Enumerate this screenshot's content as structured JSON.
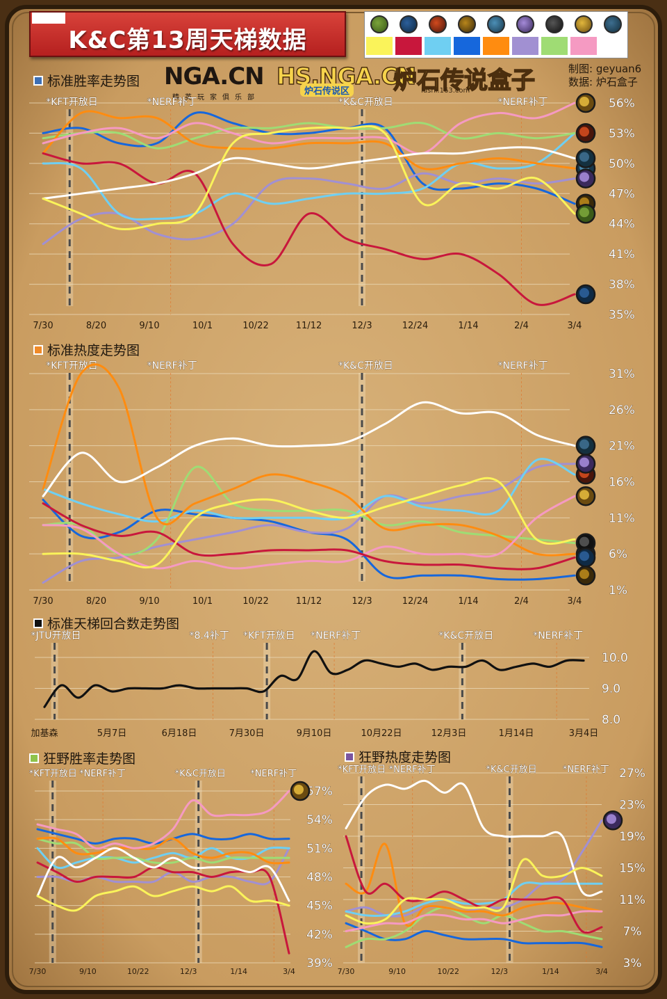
{
  "title": "K&C第13周天梯数据",
  "credits": {
    "maker_label": "制图:",
    "maker": "geyuan6",
    "source_label": "数据:",
    "source": "炉石盒子"
  },
  "logos": {
    "nga": "NGA.CN",
    "nga_sub": "精英玩家俱乐部",
    "hs_nga": "HS.NGA.CN",
    "hs_nga_sub": "炉石传说区",
    "box": "炉石传说盒子",
    "box_sub": "lushi.163.com"
  },
  "legend": [
    {
      "hero": "druid",
      "color": "#faf35a"
    },
    {
      "hero": "warrior",
      "color": "#c8173c"
    },
    {
      "hero": "mage",
      "color": "#6fcff2"
    },
    {
      "hero": "shaman",
      "color": "#1667dc"
    },
    {
      "hero": "hunter",
      "color": "#ff8c10"
    },
    {
      "hero": "warlock",
      "color": "#a190d2"
    },
    {
      "hero": "rogue",
      "color": "#9fdc74"
    },
    {
      "hero": "paladin",
      "color": "#f59ac2"
    },
    {
      "hero": "priest",
      "color": "#ffffff"
    }
  ],
  "chart_data": [
    {
      "id": "std_wr",
      "type": "line",
      "title": "标准胜率走势图",
      "title_color": "#3d6fb4",
      "x_labels": [
        "7/30",
        "8/20",
        "9/10",
        "10/1",
        "10/22",
        "11/12",
        "12/3",
        "12/24",
        "1/14",
        "2/4",
        "3/4"
      ],
      "y_ticks": [
        "35%",
        "38%",
        "41%",
        "44%",
        "47%",
        "50%",
        "53%",
        "56%"
      ],
      "ylim": [
        35,
        57
      ],
      "events": [
        {
          "label": "*KFT开放日",
          "x": 0.5
        },
        {
          "label": "*NERF补丁",
          "x": 2.4
        },
        {
          "label": "*K&C开放日",
          "x": 6.0
        },
        {
          "label": "*NERF补丁",
          "x": 9.0
        }
      ],
      "series": [
        {
          "name": "druid",
          "values": [
            46.5,
            45,
            43.5,
            44,
            45,
            52,
            53,
            53.5,
            53.5,
            53,
            46,
            48,
            47.5,
            48.5,
            45
          ]
        },
        {
          "name": "warrior",
          "values": [
            51,
            50,
            50,
            48,
            49,
            42,
            40,
            45,
            42.5,
            41.5,
            40.5,
            41,
            39,
            36,
            37
          ]
        },
        {
          "name": "mage",
          "values": [
            50,
            49.5,
            45,
            44.5,
            45,
            47,
            46,
            46.5,
            47,
            47,
            47.5,
            50,
            49.5,
            50,
            53
          ]
        },
        {
          "name": "shaman",
          "values": [
            53,
            53.5,
            52,
            52,
            55,
            54,
            53,
            53,
            53.5,
            53.5,
            48,
            47.5,
            48,
            47.5,
            46
          ]
        },
        {
          "name": "hunter",
          "values": [
            51,
            55,
            54.5,
            54.5,
            52,
            51.5,
            51.5,
            52,
            52,
            52,
            49.5,
            50,
            50.5,
            50,
            49.5
          ]
        },
        {
          "name": "warlock",
          "values": [
            42,
            44.5,
            45,
            43,
            42.5,
            44,
            48,
            48.5,
            48,
            47.5,
            49,
            48,
            48.5,
            48,
            48.5
          ]
        },
        {
          "name": "rogue",
          "values": [
            52.5,
            53,
            53,
            51.5,
            52.5,
            53.5,
            53.5,
            54,
            53.5,
            53.5,
            54,
            52.5,
            53,
            52.5,
            53
          ]
        },
        {
          "name": "paladin",
          "values": [
            52,
            53,
            53.5,
            52.5,
            54,
            53,
            52,
            52.5,
            52.5,
            52.5,
            51,
            54,
            55,
            54.5,
            56
          ]
        },
        {
          "name": "priest",
          "values": [
            46.5,
            47,
            47.5,
            48,
            49,
            50.5,
            50,
            49.5,
            50,
            50.5,
            51,
            51,
            51.5,
            51.5,
            50.5
          ]
        }
      ],
      "end_icons": [
        "paladin",
        "hunter",
        "shaman",
        "rogue",
        "mage",
        "priest",
        "warlock",
        "druid",
        "warrior"
      ]
    },
    {
      "id": "std_pop",
      "type": "line",
      "title": "标准热度走势图",
      "title_color": "#f08a28",
      "x_labels": [
        "7/30",
        "8/20",
        "9/10",
        "10/1",
        "10/22",
        "11/12",
        "12/3",
        "12/24",
        "1/14",
        "2/4",
        "3/4"
      ],
      "y_ticks": [
        "1%",
        "6%",
        "11%",
        "16%",
        "21%",
        "26%",
        "31%"
      ],
      "ylim": [
        1,
        32
      ],
      "events": [
        {
          "label": "*KFT开放日",
          "x": 0.5
        },
        {
          "label": "*NERF补丁",
          "x": 2.4
        },
        {
          "label": "*K&C开放日",
          "x": 6.0
        },
        {
          "label": "*NERF补丁",
          "x": 9.0
        }
      ],
      "series": [
        {
          "name": "druid",
          "values": [
            6,
            6,
            5,
            4.5,
            11,
            13,
            13.5,
            12,
            11,
            12.5,
            14,
            15.5,
            16,
            8,
            8
          ]
        },
        {
          "name": "warrior",
          "values": [
            13,
            10,
            8.5,
            9,
            6,
            6,
            6.5,
            6.5,
            6.5,
            5,
            4.5,
            4.5,
            4,
            4,
            5.5
          ]
        },
        {
          "name": "mage",
          "values": [
            15,
            13,
            11.5,
            10.5,
            12,
            11,
            11,
            11,
            11,
            14,
            12.5,
            12,
            12,
            19,
            17
          ]
        },
        {
          "name": "shaman",
          "values": [
            13.5,
            8.5,
            9,
            12,
            11.5,
            11,
            10.5,
            9,
            8,
            3,
            3,
            3,
            2.5,
            2.5,
            3
          ]
        },
        {
          "name": "hunter",
          "values": [
            15,
            31,
            29,
            11,
            13,
            15,
            17,
            16,
            14,
            9.5,
            10,
            10,
            8.5,
            6,
            6
          ]
        },
        {
          "name": "warlock",
          "values": [
            2,
            5,
            5.5,
            7,
            8,
            9,
            10,
            9,
            9.5,
            14,
            13,
            14,
            15,
            18,
            18.5
          ]
        },
        {
          "name": "rogue",
          "values": [
            10,
            10,
            6,
            8,
            18,
            13,
            12,
            12,
            12,
            10,
            10.5,
            9,
            8.5,
            8,
            7.5
          ]
        },
        {
          "name": "paladin",
          "values": [
            10,
            9.5,
            6,
            4,
            5,
            4,
            4.5,
            5,
            5,
            7,
            6,
            6,
            6,
            11,
            14
          ]
        },
        {
          "name": "priest",
          "values": [
            14,
            20,
            16,
            18,
            21,
            22,
            21,
            21,
            21.5,
            24,
            27,
            25.5,
            25.5,
            22.5,
            21
          ]
        }
      ],
      "end_icons": [
        "mage",
        "hunter",
        "warlock",
        "paladin",
        "priest",
        "rogue",
        "warrior",
        "shaman"
      ]
    },
    {
      "id": "std_turns",
      "type": "line",
      "title": "标准天梯回合数走势图",
      "title_color": "#111111",
      "x_labels": [
        "加基森",
        "5月7日",
        "6月18日",
        "7月30日",
        "9月10日",
        "10月22日",
        "12月3日",
        "1月14日",
        "3月4日"
      ],
      "y_ticks": [
        "8.0",
        "9.0",
        "10.0"
      ],
      "ylim": [
        8,
        10.5
      ],
      "events": [
        {
          "label": "*JTU开放日",
          "x": 0.15
        },
        {
          "label": "*8.4补丁",
          "x": 2.5
        },
        {
          "label": "*KFT开放日",
          "x": 3.3
        },
        {
          "label": "*NERF补丁",
          "x": 4.3
        },
        {
          "label": "*K&C开放日",
          "x": 6.2
        },
        {
          "label": "*NERF补丁",
          "x": 7.6
        }
      ],
      "series": [
        {
          "name": "turns",
          "values": [
            8.4,
            9.1,
            8.7,
            9.1,
            8.9,
            9.0,
            9.0,
            9.0,
            9.1,
            9.0,
            9.0,
            9.0,
            9.0,
            8.9,
            9.4,
            9.3,
            10.2,
            9.5,
            9.6,
            9.9,
            9.8,
            9.7,
            9.8,
            9.6,
            9.7,
            9.7,
            9.9,
            9.6,
            9.7,
            9.8,
            9.7,
            9.9,
            9.9
          ]
        }
      ]
    },
    {
      "id": "wild_wr",
      "type": "line",
      "title": "狂野胜率走势图",
      "title_color": "#8fc34a",
      "x_labels": [
        "7/30",
        "9/10",
        "10/22",
        "12/3",
        "1/14",
        "3/4"
      ],
      "y_ticks": [
        "39%",
        "42%",
        "45%",
        "48%",
        "51%",
        "54%",
        "57%"
      ],
      "ylim": [
        38.5,
        58
      ],
      "events": [
        {
          "label": "*KFT开放日",
          "x": 0.3
        },
        {
          "label": "*NERF补丁",
          "x": 1.3
        },
        {
          "label": "*K&C开放日",
          "x": 3.2
        },
        {
          "label": "*NERF补丁",
          "x": 4.7
        }
      ],
      "series": [
        {
          "name": "druid",
          "values": [
            46,
            45,
            44.5,
            46,
            46.5,
            47,
            46,
            46.5,
            47,
            46.5,
            47,
            45.5,
            45.5,
            45
          ]
        },
        {
          "name": "warrior",
          "values": [
            49.5,
            48.5,
            47.5,
            48,
            48,
            48,
            49,
            48.5,
            48.5,
            48,
            48.5,
            48.5,
            48,
            40
          ]
        },
        {
          "name": "mage",
          "values": [
            51,
            49,
            49.5,
            50,
            50,
            49.5,
            50,
            50.5,
            50,
            51,
            50,
            50,
            51,
            51
          ]
        },
        {
          "name": "shaman",
          "values": [
            53,
            52.5,
            52,
            51.5,
            52,
            52,
            51.5,
            52,
            52.5,
            52,
            52,
            52.5,
            52,
            52
          ]
        },
        {
          "name": "hunter",
          "values": [
            52,
            52,
            50.5,
            50.5,
            51,
            51,
            51,
            52,
            50.5,
            50,
            50.5,
            50.5,
            49.5,
            49.5
          ]
        },
        {
          "name": "warlock",
          "values": [
            48,
            48,
            47.5,
            48,
            47.5,
            47.5,
            47.5,
            48.5,
            47.5,
            48,
            48,
            47.5,
            47.5,
            51
          ]
        },
        {
          "name": "rogue",
          "values": [
            52,
            51.5,
            51.5,
            50,
            50,
            50,
            49.5,
            49.5,
            50,
            49.5,
            50,
            50,
            50,
            50
          ]
        },
        {
          "name": "paladin",
          "values": [
            53.5,
            53,
            52.5,
            51,
            51.5,
            51,
            51.5,
            53,
            56,
            54.5,
            54.5,
            54.5,
            55,
            57
          ]
        },
        {
          "name": "priest",
          "values": [
            46,
            50,
            49,
            50,
            51,
            50,
            49,
            50,
            49,
            49,
            49,
            48.5,
            49,
            45.5
          ]
        }
      ],
      "end_icons": [
        "paladin"
      ]
    },
    {
      "id": "wild_pop",
      "type": "line",
      "title": "狂野热度走势图",
      "title_color": "#7a55a0",
      "x_labels": [
        "7/30",
        "9/10",
        "10/22",
        "12/3",
        "1/14",
        "3/4"
      ],
      "y_ticks": [
        "3%",
        "7%",
        "11%",
        "15%",
        "19%",
        "23%",
        "27%"
      ],
      "ylim": [
        2.5,
        27.5
      ],
      "events": [
        {
          "label": "*KFT开放日",
          "x": 0.3
        },
        {
          "label": "*NERF补丁",
          "x": 1.3
        },
        {
          "label": "*K&C开放日",
          "x": 3.2
        },
        {
          "label": "*NERF补丁",
          "x": 4.7
        }
      ],
      "series": [
        {
          "name": "druid",
          "values": [
            9,
            8,
            8.5,
            11,
            11,
            11,
            10,
            10,
            10,
            16,
            14,
            14,
            15,
            14
          ]
        },
        {
          "name": "warrior",
          "values": [
            19,
            12,
            13,
            11,
            11,
            12,
            11,
            10,
            11,
            11,
            11,
            11,
            7,
            7.5
          ]
        },
        {
          "name": "mage",
          "values": [
            9.5,
            9,
            9,
            9.5,
            10.5,
            11,
            10.5,
            10.5,
            11,
            13,
            13,
            13,
            13,
            13
          ]
        },
        {
          "name": "shaman",
          "values": [
            8,
            7,
            6,
            6,
            7,
            6.5,
            6,
            6,
            6,
            5.5,
            5.5,
            5.5,
            5.5,
            5
          ]
        },
        {
          "name": "hunter",
          "values": [
            13,
            12,
            18,
            8,
            10,
            10,
            9.5,
            9.5,
            9,
            10,
            10.5,
            10.5,
            10,
            9.5
          ]
        },
        {
          "name": "warlock",
          "values": [
            9.5,
            10,
            9,
            9,
            10,
            10,
            9.5,
            10,
            10,
            11,
            13,
            13.5,
            17,
            21
          ]
        },
        {
          "name": "rogue",
          "values": [
            5,
            6,
            6,
            7,
            9,
            10,
            9,
            8,
            9,
            8,
            7,
            7,
            6.5,
            6
          ]
        },
        {
          "name": "paladin",
          "values": [
            7,
            7.5,
            8,
            8,
            9,
            9,
            8.5,
            8.5,
            8,
            8.5,
            9,
            9,
            9.5,
            9.5
          ]
        },
        {
          "name": "priest",
          "values": [
            20,
            24,
            25.5,
            25,
            26,
            24.5,
            25.5,
            20,
            19,
            19,
            19,
            19,
            12,
            12
          ]
        }
      ],
      "end_icons": [
        "warlock"
      ]
    }
  ]
}
